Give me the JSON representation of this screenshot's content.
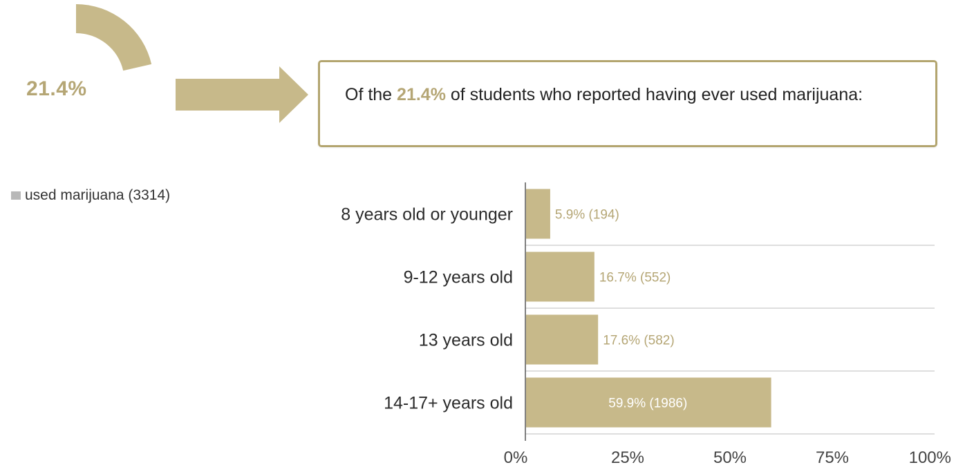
{
  "colors": {
    "accent": "#c7b98a",
    "accent_text": "#b5a675",
    "grid": "#d4d4d4",
    "label_dark": "#2b2b2b"
  },
  "donut": {
    "value_label": "21.4%",
    "value": 21.4
  },
  "arrow": {
    "icon": "right-arrow-icon"
  },
  "callout": {
    "text_before": "Of the ",
    "highlight": "21.4%",
    "text_after": " of students who reported having ever used marijuana:"
  },
  "legend": {
    "label": "used marijuana (3314)"
  },
  "chart_data": {
    "type": "bar",
    "orientation": "horizontal",
    "categories": [
      "8 years old or younger",
      "9-12 years old",
      "13 years old",
      "14-17+ years old"
    ],
    "values": [
      5.9,
      16.7,
      17.6,
      59.9
    ],
    "data_labels": [
      "5.9% (194)",
      "16.7% (552)",
      "17.6% (582)",
      "59.9% (1986)"
    ],
    "xlim": [
      0,
      100
    ],
    "xticks": [
      "0%",
      "25%",
      "50%",
      "75%",
      "100%"
    ],
    "xtick_values": [
      0,
      25,
      50,
      75,
      100
    ],
    "grid": true
  }
}
